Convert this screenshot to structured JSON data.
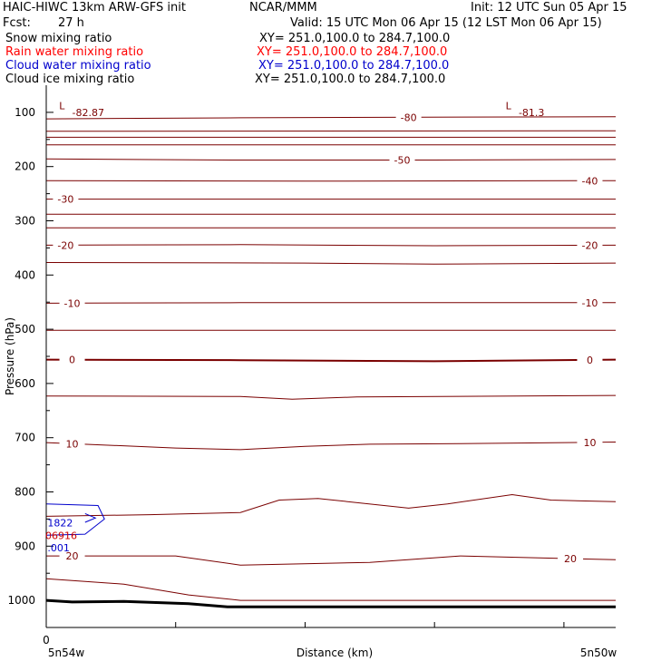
{
  "header": {
    "model_title": "HAIC-HIWC 13km ARW-GFS init",
    "org": "NCAR/MMM",
    "init": "Init: 12 UTC Sun 05 Apr 15",
    "fcst_label": "Fcst:",
    "fcst_value": "27 h",
    "valid": "Valid: 15 UTC Mon 06 Apr 15 (12 LST Mon 06 Apr 15)",
    "fields": [
      {
        "name": "Snow mixing ratio",
        "xy": "XY= 251.0,100.0 to 284.7,100.0",
        "color": "#000000"
      },
      {
        "name": "Rain water mixing ratio",
        "xy": "XY= 251.0,100.0 to 284.7,100.0",
        "color": "#ff0000"
      },
      {
        "name": "Cloud water mixing ratio",
        "xy": "XY= 251.0,100.0 to 284.7,100.0",
        "color": "#0000cc"
      },
      {
        "name": "Cloud ice mixing ratio",
        "xy": "XY= 251.0,100.0 to 284.7,100.0",
        "color": "#000000"
      }
    ]
  },
  "chart_data": {
    "type": "contour",
    "ylabel": "Pressure (hPa)",
    "xlabel": "Distance (km)",
    "x_left_label": "5n54w",
    "x_right_label": "5n50w",
    "x_tick_labels": [
      "0"
    ],
    "y_ticks": [
      100,
      200,
      300,
      400,
      500,
      600,
      700,
      800,
      900,
      1000
    ],
    "ylim": [
      1050,
      50
    ],
    "xlim": [
      0,
      440
    ],
    "x_minor_ticks": [
      0,
      100,
      200,
      300,
      400
    ],
    "temperature_contour_color": "#7a0000",
    "rain_color": "#cc0000",
    "cloud_water_color": "#0000cc",
    "ground_color": "#000000",
    "isotherms": [
      {
        "label": "-80",
        "points": [
          [
            0,
            112
          ],
          [
            150,
            110
          ],
          [
            290,
            109
          ],
          [
            440,
            108
          ]
        ],
        "labels": [
          [
            280,
            "-80"
          ]
        ]
      },
      {
        "label": "",
        "points": [
          [
            0,
            135
          ],
          [
            440,
            134
          ]
        ],
        "labels": []
      },
      {
        "label": "",
        "points": [
          [
            0,
            146
          ],
          [
            440,
            146
          ]
        ],
        "labels": []
      },
      {
        "label": "",
        "points": [
          [
            0,
            160
          ],
          [
            440,
            160
          ]
        ],
        "labels": []
      },
      {
        "label": "-50",
        "points": [
          [
            0,
            186
          ],
          [
            150,
            188
          ],
          [
            300,
            188
          ],
          [
            440,
            187
          ]
        ],
        "labels": [
          [
            275,
            "-50"
          ]
        ]
      },
      {
        "label": "-40",
        "points": [
          [
            0,
            226
          ],
          [
            200,
            227
          ],
          [
            440,
            226
          ]
        ],
        "labels": [
          [
            420,
            "-40"
          ]
        ]
      },
      {
        "label": "-30",
        "points": [
          [
            0,
            260
          ],
          [
            440,
            260
          ]
        ],
        "labels": [
          [
            15,
            "-30"
          ]
        ]
      },
      {
        "label": "",
        "points": [
          [
            0,
            288
          ],
          [
            440,
            288
          ]
        ],
        "labels": []
      },
      {
        "label": "",
        "points": [
          [
            0,
            313
          ],
          [
            440,
            313
          ]
        ],
        "labels": []
      },
      {
        "label": "-20",
        "points": [
          [
            0,
            345
          ],
          [
            150,
            344
          ],
          [
            300,
            346
          ],
          [
            440,
            345
          ]
        ],
        "labels": [
          [
            15,
            "-20"
          ],
          [
            420,
            "-20"
          ]
        ]
      },
      {
        "label": "",
        "points": [
          [
            0,
            377
          ],
          [
            200,
            378
          ],
          [
            300,
            380
          ],
          [
            440,
            378
          ]
        ],
        "labels": []
      },
      {
        "label": "-10",
        "points": [
          [
            0,
            452
          ],
          [
            150,
            451
          ],
          [
            300,
            451
          ],
          [
            440,
            451
          ]
        ],
        "labels": [
          [
            20,
            "-10"
          ],
          [
            420,
            "-10"
          ]
        ]
      },
      {
        "label": "",
        "points": [
          [
            0,
            502
          ],
          [
            440,
            502
          ]
        ],
        "labels": []
      },
      {
        "label": "0",
        "points": [
          [
            0,
            556
          ],
          [
            150,
            557
          ],
          [
            300,
            559
          ],
          [
            440,
            556
          ]
        ],
        "labels": [
          [
            20,
            "0"
          ],
          [
            420,
            "0"
          ]
        ],
        "bold": true
      },
      {
        "label": "",
        "points": [
          [
            0,
            623
          ],
          [
            150,
            624
          ],
          [
            190,
            629
          ],
          [
            240,
            625
          ],
          [
            440,
            622
          ]
        ],
        "labels": []
      },
      {
        "label": "10",
        "points": [
          [
            0,
            709
          ],
          [
            100,
            719
          ],
          [
            150,
            722
          ],
          [
            200,
            716
          ],
          [
            250,
            712
          ],
          [
            320,
            711
          ],
          [
            440,
            708
          ]
        ],
        "labels": [
          [
            20,
            "10"
          ],
          [
            420,
            "10"
          ]
        ]
      },
      {
        "label": "",
        "points": [
          [
            0,
            845
          ],
          [
            80,
            842
          ],
          [
            150,
            838
          ],
          [
            180,
            815
          ],
          [
            210,
            812
          ],
          [
            280,
            830
          ],
          [
            310,
            822
          ],
          [
            360,
            805
          ],
          [
            390,
            815
          ],
          [
            440,
            818
          ]
        ],
        "labels": []
      },
      {
        "label": "20",
        "points": [
          [
            0,
            918
          ],
          [
            100,
            918
          ],
          [
            150,
            935
          ],
          [
            250,
            930
          ],
          [
            320,
            918
          ],
          [
            440,
            925
          ]
        ],
        "labels": [
          [
            20,
            "20"
          ],
          [
            405,
            "20"
          ]
        ]
      },
      {
        "label": "",
        "points": [
          [
            0,
            960
          ],
          [
            60,
            970
          ],
          [
            110,
            990
          ],
          [
            150,
            1000
          ],
          [
            440,
            1000
          ]
        ],
        "labels": []
      }
    ],
    "ground": [
      [
        0,
        1000
      ],
      [
        20,
        1003
      ],
      [
        60,
        1002
      ],
      [
        110,
        1006
      ],
      [
        140,
        1012
      ],
      [
        440,
        1012
      ]
    ],
    "cloud_water_contour": {
      "label": "1822",
      "points": [
        [
          0,
          822
        ],
        [
          40,
          825
        ],
        [
          45,
          850
        ],
        [
          30,
          878
        ],
        [
          0,
          880
        ]
      ]
    },
    "rain_label": "06916",
    "snow_label": ".001",
    "markers": [
      {
        "text": "L",
        "x": 10,
        "p": 88
      },
      {
        "text": "-82.87",
        "x": 20,
        "p": 100
      },
      {
        "text": "L",
        "x": 355,
        "p": 88
      },
      {
        "text": "-81.3",
        "x": 365,
        "p": 100
      }
    ]
  }
}
